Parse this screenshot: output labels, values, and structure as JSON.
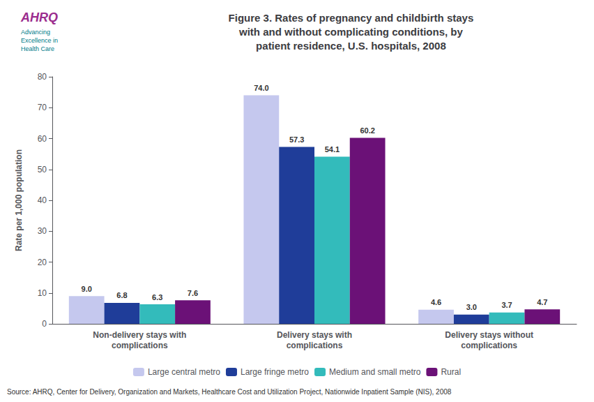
{
  "chart_data": {
    "type": "bar",
    "title": "Figure 3. Rates of pregnancy and childbirth stays\nwith and without complicating conditions, by\npatient residence, U.S. hospitals, 2008",
    "ylabel": "Rate per 1,000 population",
    "annotations": [
      "AHRQ",
      "Advancing\nExcellence in\nHealth Care",
      "Source: AHRQ, Center for Delivery, Organization and Markets, Healthcare Cost and Utilization Project, Nationwide Inpatient Sample (NIS), 2008"
    ],
    "categories": [
      "Non-delivery stays with\ncomplications",
      "Delivery stays with\ncomplications",
      "Delivery stays without\ncomplications"
    ],
    "series": [
      {
        "name": "Large central metro",
        "color": "#c5c8ee",
        "values": [
          9.0,
          74.0,
          4.6
        ],
        "value_labels": [
          "9.0",
          "74.0",
          "4.6"
        ]
      },
      {
        "name": "Large fringe metro",
        "color": "#1f3d99",
        "values": [
          6.8,
          57.3,
          3.0
        ],
        "value_labels": [
          "6.8",
          "57.3",
          "3.0"
        ]
      },
      {
        "name": "Medium and small metro",
        "color": "#33bbbb",
        "values": [
          6.3,
          54.1,
          3.7
        ],
        "value_labels": [
          "6.3",
          "54.1",
          "3.7"
        ]
      },
      {
        "name": "Rural",
        "color": "#6b1177",
        "values": [
          7.6,
          60.2,
          4.7
        ],
        "value_labels": [
          "7.6",
          "60.2",
          "4.7"
        ]
      }
    ],
    "ylim": [
      0,
      80
    ],
    "yticks": [
      0,
      10,
      20,
      30,
      40,
      50,
      60,
      70,
      80
    ],
    "grid": false,
    "legend": "bottom",
    "data_labels": true
  }
}
